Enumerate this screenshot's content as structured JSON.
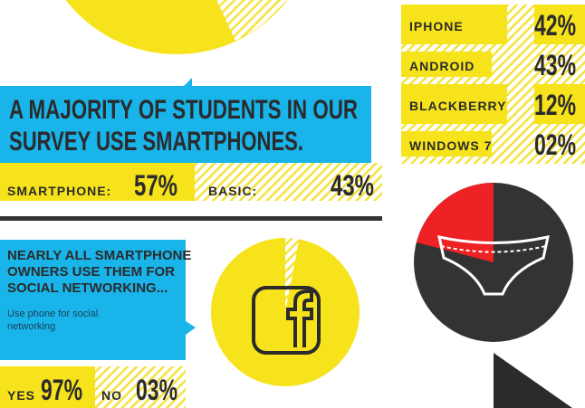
{
  "headline": [
    "A MAJORITY OF STUDENTS IN OUR",
    "SURVEY USE SMARTPHONES."
  ],
  "phone_type": {
    "smartphone": {
      "label": "SMARTPHONE:",
      "value": "57%"
    },
    "basic": {
      "label": "BASIC:",
      "value": "43%"
    }
  },
  "platforms": [
    {
      "name": "IPHONE",
      "share": "42%"
    },
    {
      "name": "ANDROID",
      "share": "43%"
    },
    {
      "name": "BLACKBERRY",
      "share": "12%"
    },
    {
      "name": "WINDOWS 7",
      "share": "02%"
    }
  ],
  "social": {
    "lines": [
      "NEARLY ALL SMARTPHONE",
      "OWNERS USE THEM FOR",
      "SOCIAL NETWORKING..."
    ],
    "note": [
      "Use phone for social",
      "networking"
    ],
    "yes": {
      "label": "YES",
      "value": 97,
      "value_label": "97%"
    },
    "no": {
      "label": "NO",
      "value": 3,
      "value_label": "03%"
    }
  }
}
